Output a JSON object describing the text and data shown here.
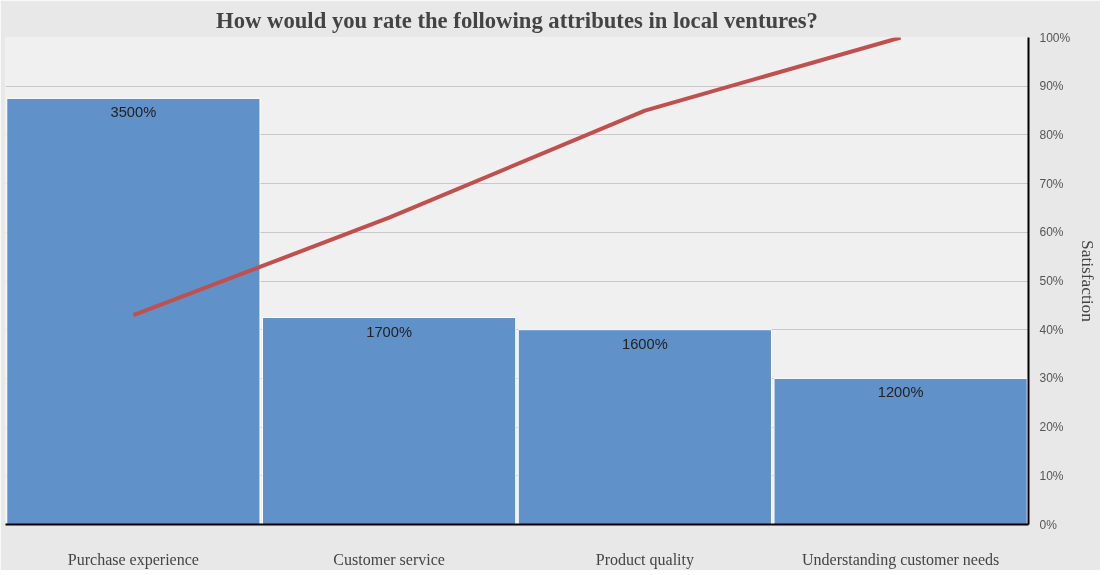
{
  "chart_data": {
    "type": "bar",
    "title": "How would you rate the following attributes in local ventures?",
    "y2label": "Satisfaction",
    "categories": [
      "Purchase experience",
      "Customer service",
      "Product quality",
      "Understanding customer needs"
    ],
    "series": [
      {
        "color": "#6091c9",
        "values": [
          3500,
          1700,
          1600,
          1200
        ],
        "value_labels": [
          "3500%",
          "1700%",
          "1600%",
          "1200%"
        ]
      },
      {
        "type": "line",
        "axis": "y2",
        "color": "#c0504d",
        "values": [
          43,
          63,
          85,
          100
        ]
      }
    ],
    "ylim": [
      0,
      4000
    ],
    "y2lim": [
      0,
      100
    ],
    "y2ticks": [
      {
        "value": 0,
        "label": "0%"
      },
      {
        "value": 10,
        "label": "10%"
      },
      {
        "value": 20,
        "label": "20%"
      },
      {
        "value": 30,
        "label": "30%"
      },
      {
        "value": 40,
        "label": "40%"
      },
      {
        "value": 50,
        "label": "50%"
      },
      {
        "value": 60,
        "label": "60%"
      },
      {
        "value": 70,
        "label": "70%"
      },
      {
        "value": 80,
        "label": "80%"
      },
      {
        "value": 90,
        "label": "90%"
      },
      {
        "value": 100,
        "label": "100%"
      }
    ],
    "grid": "y"
  }
}
